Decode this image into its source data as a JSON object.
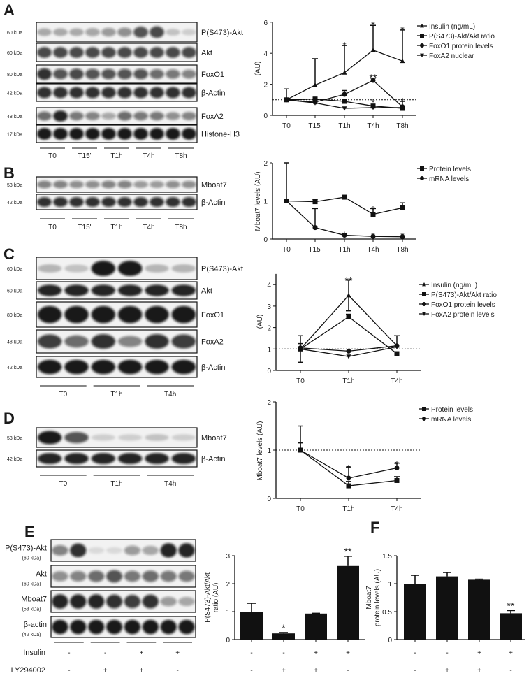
{
  "panels": {
    "A": {
      "letter": "A",
      "blots": [
        {
          "name": "P(S473)-Akt",
          "kda": "60 kDa",
          "bands": [
            0.3,
            0.3,
            0.3,
            0.35,
            0.4,
            0.45,
            0.7,
            0.75,
            0.2,
            0.15
          ]
        },
        {
          "name": "Akt",
          "kda": "60 kDa",
          "bands": [
            0.75,
            0.75,
            0.75,
            0.75,
            0.75,
            0.75,
            0.75,
            0.75,
            0.75,
            0.75
          ]
        },
        {
          "name": "FoxO1",
          "kda": "80 kDa",
          "bands": [
            0.85,
            0.7,
            0.75,
            0.7,
            0.7,
            0.7,
            0.7,
            0.6,
            0.55,
            0.5
          ]
        },
        {
          "name": "β-Actin",
          "kda": "42 kDa",
          "bands": [
            0.85,
            0.85,
            0.85,
            0.85,
            0.85,
            0.85,
            0.85,
            0.85,
            0.85,
            0.85
          ]
        },
        {
          "name": "FoxA2",
          "kda": "48 kDa",
          "bands": [
            0.6,
            0.9,
            0.55,
            0.5,
            0.35,
            0.6,
            0.55,
            0.55,
            0.45,
            0.5
          ]
        },
        {
          "name": "Histone-H3",
          "kda": "17 kDa",
          "bands": [
            0.95,
            0.95,
            0.95,
            0.95,
            0.95,
            0.95,
            0.95,
            0.95,
            0.95,
            0.95
          ]
        }
      ],
      "groups": [
        "T0",
        "T15'",
        "T1h",
        "T4h",
        "T8h"
      ]
    },
    "B": {
      "letter": "B",
      "blots": [
        {
          "name": "Mboat7",
          "kda": "53 kDa",
          "bands": [
            0.5,
            0.5,
            0.45,
            0.45,
            0.5,
            0.5,
            0.4,
            0.4,
            0.45,
            0.45
          ]
        },
        {
          "name": "β-Actin",
          "kda": "42 kDa",
          "bands": [
            0.85,
            0.85,
            0.85,
            0.85,
            0.85,
            0.85,
            0.85,
            0.85,
            0.85,
            0.85
          ]
        }
      ],
      "groups": [
        "T0",
        "T15'",
        "T1h",
        "T4h",
        "T8h"
      ]
    },
    "C": {
      "letter": "C",
      "blots": [
        {
          "name": "P(S473)-Akt",
          "kda": "60 kDa",
          "bands": [
            0.25,
            0.2,
            0.95,
            0.95,
            0.25,
            0.25
          ]
        },
        {
          "name": "Akt",
          "kda": "60 kDa",
          "bands": [
            0.9,
            0.9,
            0.9,
            0.9,
            0.9,
            0.9
          ]
        },
        {
          "name": "FoxO1",
          "kda": "80 kDa",
          "bands": [
            0.95,
            0.95,
            0.95,
            0.95,
            0.95,
            0.95
          ]
        },
        {
          "name": "FoxA2",
          "kda": "48 kDa",
          "bands": [
            0.8,
            0.6,
            0.85,
            0.5,
            0.85,
            0.8
          ]
        },
        {
          "name": "β-Actin",
          "kda": "42 kDa",
          "bands": [
            0.95,
            0.95,
            0.95,
            0.95,
            0.95,
            0.95
          ]
        }
      ],
      "groups": [
        "T0",
        "T1h",
        "T4h"
      ]
    },
    "D": {
      "letter": "D",
      "blots": [
        {
          "name": "Mboat7",
          "kda": "53 kDa",
          "bands": [
            0.95,
            0.7,
            0.15,
            0.15,
            0.2,
            0.15
          ]
        },
        {
          "name": "β-Actin",
          "kda": "42 kDa",
          "bands": [
            0.9,
            0.9,
            0.9,
            0.9,
            0.9,
            0.9
          ]
        }
      ],
      "groups": [
        "T0",
        "T1h",
        "T4h"
      ]
    },
    "E": {
      "letter": "E",
      "blots": [
        {
          "name": "P(S473)-Akt",
          "kda": "(60 kDa)",
          "bands": [
            0.5,
            0.85,
            0.1,
            0.1,
            0.4,
            0.35,
            0.9,
            0.9
          ]
        },
        {
          "name": "Akt",
          "kda": "(60 kDa)",
          "bands": [
            0.45,
            0.5,
            0.6,
            0.7,
            0.55,
            0.6,
            0.55,
            0.55
          ]
        },
        {
          "name": "Mboat7",
          "kda": "(53 kDa)",
          "bands": [
            0.9,
            0.9,
            0.9,
            0.85,
            0.8,
            0.85,
            0.4,
            0.35
          ]
        },
        {
          "name": "β-actin",
          "kda": "(42 kDa)",
          "bands": [
            0.95,
            0.95,
            0.95,
            0.95,
            0.95,
            0.95,
            0.95,
            0.95
          ]
        }
      ],
      "treatments": [
        {
          "name": "Insulin",
          "values": [
            "-",
            "-",
            "+",
            "+"
          ]
        },
        {
          "name": "LY294002",
          "values": [
            "-",
            "+",
            "+",
            "-"
          ]
        }
      ]
    },
    "F": {
      "letter": "F"
    }
  },
  "chart_data": [
    {
      "id": "A",
      "type": "line",
      "ylabel": "(AU)",
      "ylim": [
        0,
        6
      ],
      "yticks": [
        "0",
        "2",
        "4",
        "6"
      ],
      "categories": [
        "T0",
        "T15'",
        "T1h",
        "T4h",
        "T8h"
      ],
      "reference_line": 1,
      "series": [
        {
          "name": "Insulin (ng/mL)",
          "marker": "triangle-up",
          "values": [
            1,
            1.95,
            2.75,
            4.2,
            3.5
          ],
          "err_upper": [
            1.7,
            3.65,
            4.5,
            5.8,
            5.5
          ]
        },
        {
          "name": "P(S473)-Akt/Akt ratio",
          "marker": "square",
          "values": [
            1,
            1.05,
            0.9,
            0.6,
            0.45
          ],
          "err_upper": [
            null,
            null,
            null,
            null,
            null
          ]
        },
        {
          "name": "FoxO1 protein levels",
          "marker": "circle",
          "values": [
            1,
            0.85,
            1.35,
            2.25,
            0.55
          ],
          "err_upper": [
            null,
            null,
            1.6,
            2.4,
            0.9
          ]
        },
        {
          "name": "FoxA2 nuclear",
          "marker": "triangle-down",
          "values": [
            1,
            0.8,
            0.45,
            0.5,
            0.5
          ],
          "err_upper": [
            null,
            null,
            null,
            null,
            null
          ]
        }
      ],
      "annotations": [
        {
          "x": 2,
          "y": 4.75,
          "text": "*"
        },
        {
          "x": 3,
          "y": 6.05,
          "text": "*"
        },
        {
          "x": 4,
          "y": 5.75,
          "text": "*"
        },
        {
          "x": 3,
          "y": 2.65,
          "text": "**"
        },
        {
          "x": 3,
          "y": 1.05,
          "text": "*"
        },
        {
          "x": 4,
          "y": 1.15,
          "text": "*"
        }
      ]
    },
    {
      "id": "B",
      "type": "line",
      "ylabel": "Mboat7 levels (AU)",
      "ylim": [
        0,
        2
      ],
      "yticks": [
        "0",
        "1",
        "2"
      ],
      "categories": [
        "T0",
        "T15'",
        "T1h",
        "T4h",
        "T8h"
      ],
      "reference_line": 1,
      "series": [
        {
          "name": "Protein levels",
          "marker": "square",
          "values": [
            1,
            0.98,
            1.1,
            0.65,
            0.82
          ],
          "err_upper": [
            null,
            1.05,
            null,
            0.8,
            0.95
          ]
        },
        {
          "name": "mRNA levels",
          "marker": "circle",
          "values": [
            1,
            0.3,
            0.1,
            0.07,
            0.06
          ],
          "err_upper": [
            2.0,
            0.8,
            0.14,
            null,
            null
          ]
        }
      ],
      "annotations": [
        {
          "x": 2,
          "y": 0.2,
          "text": "*"
        },
        {
          "x": 3,
          "y": 0.17,
          "text": "*"
        },
        {
          "x": 4,
          "y": 0.17,
          "text": "*"
        },
        {
          "x": 3,
          "y": 0.87,
          "text": "*"
        }
      ]
    },
    {
      "id": "C",
      "type": "line",
      "ylabel": "(AU)",
      "ylim": [
        0,
        4.5
      ],
      "yticks": [
        "0",
        "1",
        "2",
        "3",
        "4"
      ],
      "categories": [
        "T0",
        "T1h",
        "T4h"
      ],
      "reference_line": 1,
      "series": [
        {
          "name": "Insulin (ng/mL)",
          "marker": "triangle-up",
          "values": [
            1,
            3.5,
            1.15
          ],
          "err_upper": [
            1.62,
            4.22,
            1.62
          ],
          "err_lower": [
            0.38,
            2.78,
            null
          ]
        },
        {
          "name": "P(S473)-Akt/Akt ratio",
          "marker": "square",
          "values": [
            1,
            2.5,
            0.78
          ],
          "err_upper": [
            1.25,
            2.62,
            null
          ]
        },
        {
          "name": "FoxO1 protein levels",
          "marker": "circle",
          "values": [
            1.05,
            0.9,
            1.15
          ],
          "err_upper": [
            null,
            null,
            null
          ]
        },
        {
          "name": "FoxA2 protein levels",
          "marker": "triangle-down",
          "values": [
            1,
            0.65,
            1.1
          ],
          "err_upper": [
            null,
            null,
            null
          ]
        }
      ],
      "annotations": [
        {
          "x": 1,
          "y": 4.35,
          "text": "**"
        },
        {
          "x": 1,
          "y": 1.05,
          "text": "*"
        }
      ]
    },
    {
      "id": "D",
      "type": "line",
      "ylabel": "Mboat7 levels (AU)",
      "ylim": [
        0,
        2
      ],
      "yticks": [
        "0",
        "1",
        "2"
      ],
      "categories": [
        "T0",
        "T1h",
        "T4h"
      ],
      "reference_line": 1,
      "series": [
        {
          "name": "Protein levels",
          "marker": "square",
          "values": [
            1,
            0.26,
            0.37
          ],
          "err_upper": [
            1.15,
            0.35,
            0.45
          ]
        },
        {
          "name": "mRNA levels",
          "marker": "circle",
          "values": [
            1,
            0.42,
            0.63
          ],
          "err_upper": [
            1.5,
            0.65,
            0.73
          ]
        }
      ],
      "annotations": [
        {
          "x": 1,
          "y": 0.7,
          "text": "*"
        },
        {
          "x": 2,
          "y": 0.78,
          "text": "*"
        }
      ]
    },
    {
      "id": "E",
      "type": "bar",
      "ylabel": [
        "P(S473)-Akt/Akt",
        "ratio (AU)"
      ],
      "ylim": [
        0,
        3
      ],
      "yticks": [
        "0",
        "1",
        "2",
        "3"
      ],
      "values": [
        1,
        0.22,
        0.93,
        2.63
      ],
      "err_upper": [
        1.3,
        0.25,
        0.94,
        2.98
      ],
      "annotations": [
        "",
        "*",
        "",
        "**"
      ],
      "treatments": [
        {
          "name": "Insulin",
          "values": [
            "-",
            "-",
            "+",
            "+"
          ]
        },
        {
          "name": "LY294002",
          "values": [
            "-",
            "+",
            "+",
            "-"
          ]
        }
      ]
    },
    {
      "id": "F",
      "type": "bar",
      "ylabel": [
        "Mboat7",
        "protein  levels (AU)"
      ],
      "ylim": [
        0,
        1.5
      ],
      "yticks": [
        "0",
        "0.5",
        "1",
        "1.5"
      ],
      "values": [
        1,
        1.13,
        1.07,
        0.47
      ],
      "err_upper": [
        1.15,
        1.2,
        1.08,
        0.52
      ],
      "annotations": [
        "",
        "",
        "",
        "**"
      ],
      "treatments": [
        {
          "name": "Insulin",
          "values": [
            "-",
            "-",
            "+",
            "+"
          ]
        },
        {
          "name": "LY294002",
          "values": [
            "-",
            "+",
            "+",
            "-"
          ]
        }
      ]
    }
  ]
}
